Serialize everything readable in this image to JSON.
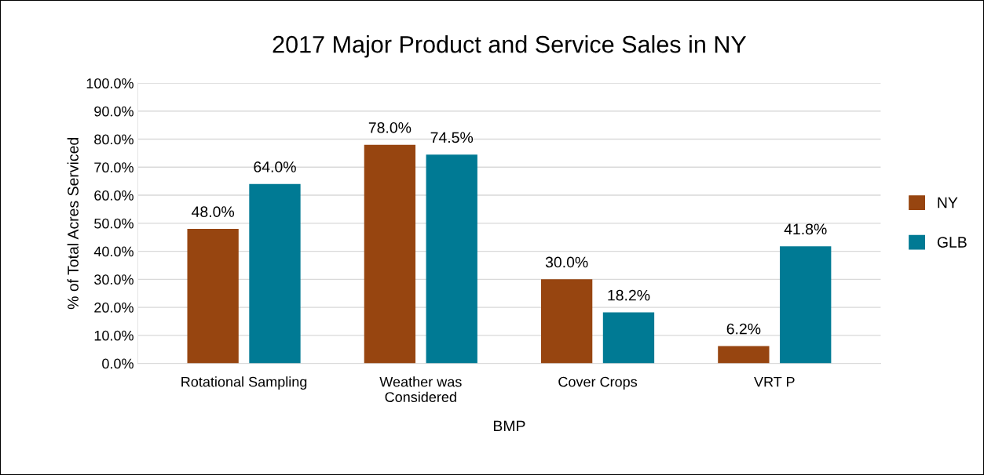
{
  "chart_data": {
    "type": "bar",
    "title": "2017 Major Product and Service Sales in NY",
    "xlabel": "BMP",
    "ylabel": "% of Total Acres Serviced",
    "categories": [
      "Rotational Sampling",
      "Weather was\nConsidered",
      "Cover Crops",
      "VRT P"
    ],
    "series": [
      {
        "name": "NY",
        "color": "#974510",
        "values": [
          48.0,
          78.0,
          30.0,
          6.2
        ],
        "value_labels": [
          "48.0%",
          "78.0%",
          "30.0%",
          "6.2%"
        ]
      },
      {
        "name": "GLB",
        "color": "#007a94",
        "values": [
          64.0,
          74.5,
          18.2,
          41.8
        ],
        "value_labels": [
          "64.0%",
          "74.5%",
          "18.2%",
          "41.8%"
        ]
      }
    ],
    "ylim": [
      0,
      100
    ],
    "yticks": [
      {
        "value": 0,
        "label": "0.0%"
      },
      {
        "value": 10,
        "label": "10.0%"
      },
      {
        "value": 20,
        "label": "20.0%"
      },
      {
        "value": 30,
        "label": "30.0%"
      },
      {
        "value": 40,
        "label": "40.0%"
      },
      {
        "value": 50,
        "label": "50.0%"
      },
      {
        "value": 60,
        "label": "60.0%"
      },
      {
        "value": 70,
        "label": "70.0%"
      },
      {
        "value": 80,
        "label": "80.0%"
      },
      {
        "value": 90,
        "label": "90.0%"
      },
      {
        "value": 100,
        "label": "100.0%"
      }
    ],
    "grid": "y",
    "legend": "right"
  }
}
